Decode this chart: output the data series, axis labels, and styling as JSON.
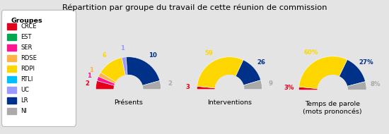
{
  "title": "Répartition par groupe du travail de cette réunion de commission",
  "background_color": "#e4e4e4",
  "groups": [
    "CRCE",
    "EST",
    "SER",
    "RDSE",
    "RDPI",
    "RTLI",
    "UC",
    "LR",
    "NI"
  ],
  "colors": {
    "CRCE": "#e3001b",
    "EST": "#00a650",
    "SER": "#ff1493",
    "RDSE": "#ffb347",
    "RDPI": "#ffd700",
    "RTLI": "#00bfff",
    "UC": "#9999ff",
    "LR": "#003189",
    "NI": "#aaaaaa"
  },
  "presents": {
    "CRCE": 2,
    "EST": 0,
    "SER": 1,
    "RDSE": 1,
    "RDPI": 6,
    "RTLI": 0,
    "UC": 1,
    "LR": 10,
    "NI": 2
  },
  "interventions": {
    "CRCE": 3,
    "EST": 0,
    "SER": 0,
    "RDSE": 0,
    "RDPI": 59,
    "RTLI": 0,
    "UC": 0,
    "LR": 26,
    "NI": 9
  },
  "temps_parole": {
    "CRCE": 3,
    "EST": 0,
    "SER": 0,
    "RDSE": 0,
    "RDPI": 60,
    "RTLI": 0,
    "UC": 0,
    "LR": 27,
    "NI": 8
  },
  "legend_title": "Groupes",
  "chart_labels": [
    "Présents",
    "Interventions",
    "Temps de parole\n(mots prononcés)"
  ]
}
